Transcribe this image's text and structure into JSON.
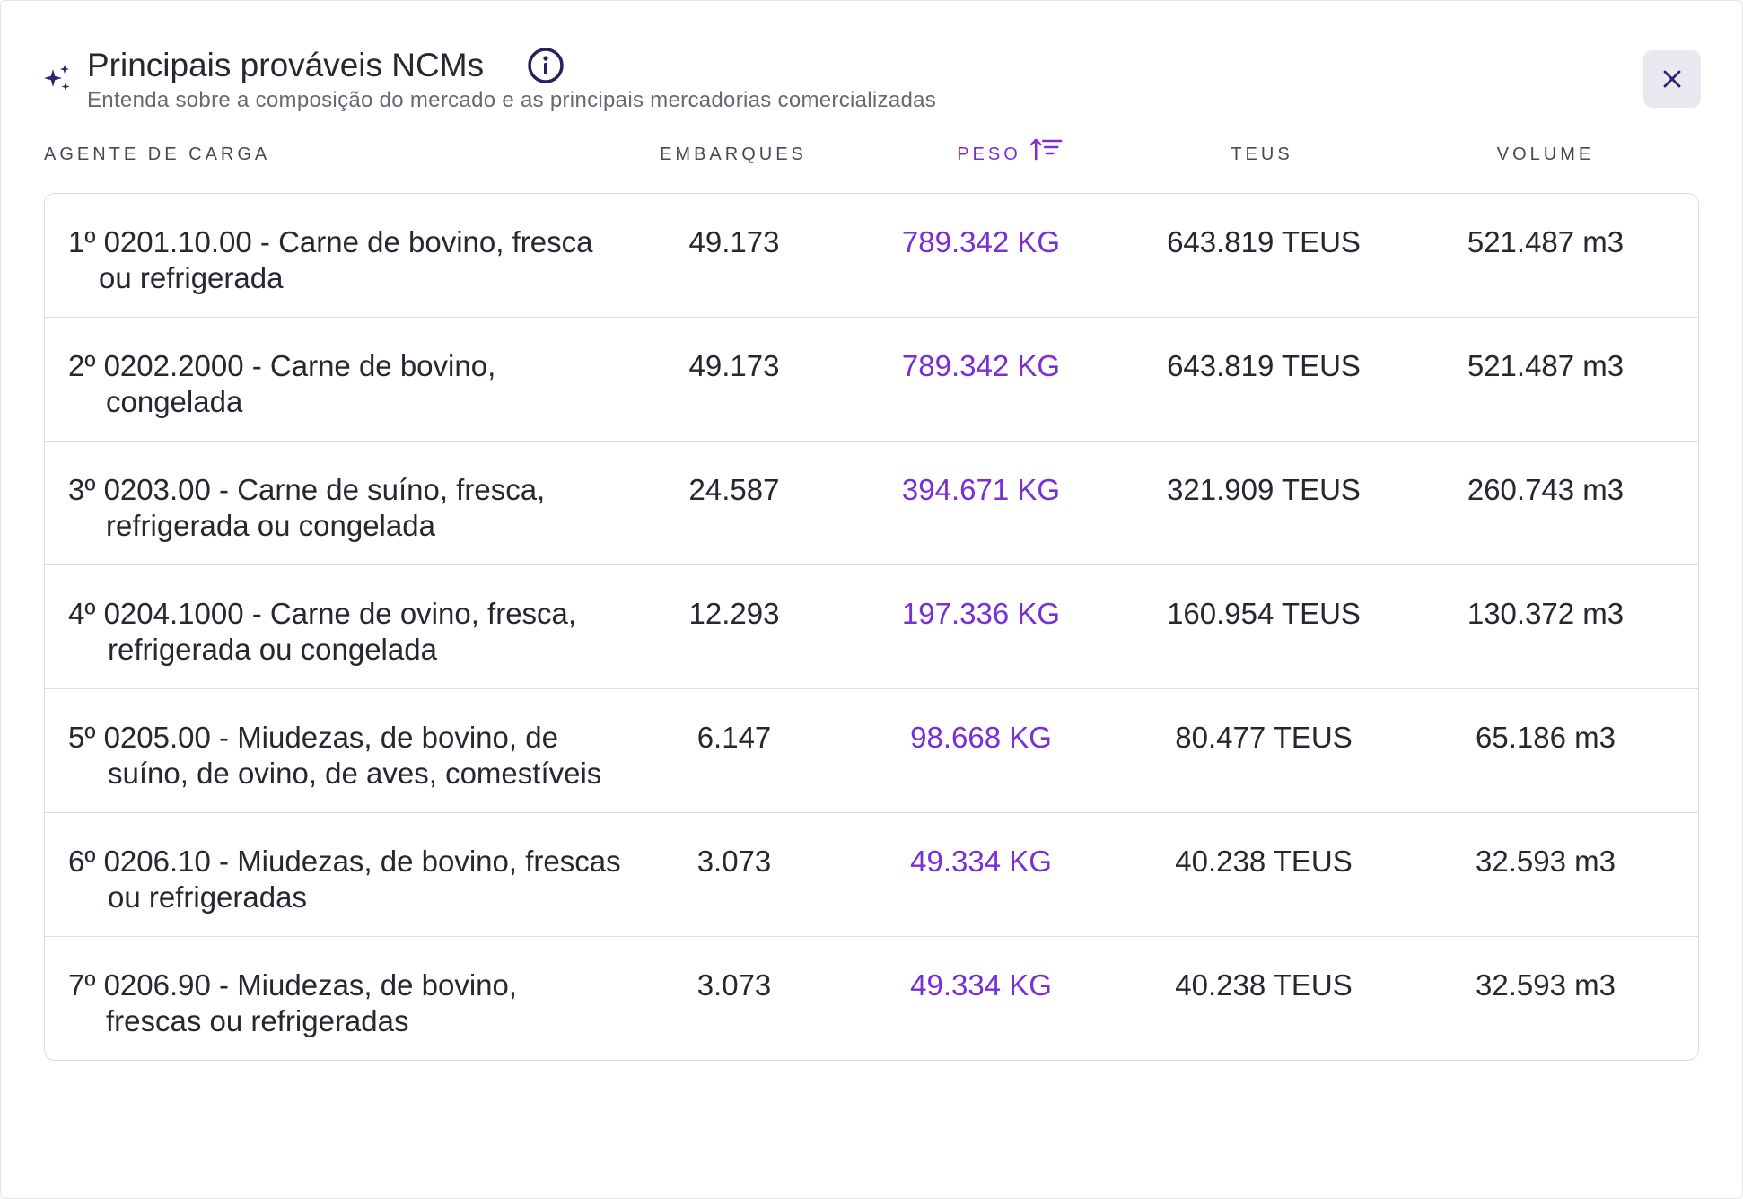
{
  "header": {
    "title": "Principais prováveis NCMs",
    "subtitle": "Entenda sobre a composição do mercado e as principais mercadorias comercializadas"
  },
  "icons": {
    "sparkle": "sparkle-icon",
    "info": "info-icon",
    "close": "close-icon",
    "sort": "sort-descending-icon"
  },
  "colors": {
    "accent": "#7a2fd4",
    "text": "#2a2532",
    "close_bg": "#e8e8ef"
  },
  "table": {
    "columns": {
      "agente": "AGENTE DE CARGA",
      "embarques": "EMBARQUES",
      "peso": "PESO",
      "teus": "TEUS",
      "volume": "VOLUME"
    },
    "sorted_by": "PESO",
    "rows": [
      {
        "rank": "1º",
        "line1": "0201.10.00 - Carne de bovino, fresca",
        "line2": "ou refrigerada",
        "embarques": "49.173",
        "peso": "789.342 KG",
        "teus": "643.819 TEUS",
        "volume": "521.487 m3"
      },
      {
        "rank": "2º",
        "line1": "0202.2000 - Carne de bovino,",
        "line2": "congelada",
        "embarques": "49.173",
        "peso": "789.342 KG",
        "teus": "643.819 TEUS",
        "volume": "521.487 m3"
      },
      {
        "rank": "3º",
        "line1": "0203.00 - Carne de suíno, fresca,",
        "line2": "refrigerada ou congelada",
        "embarques": "24.587",
        "peso": "394.671 KG",
        "teus": "321.909 TEUS",
        "volume": "260.743 m3"
      },
      {
        "rank": "4º",
        "line1": "0204.1000 - Carne de ovino, fresca,",
        "line2": "refrigerada ou congelada",
        "embarques": "12.293",
        "peso": "197.336 KG",
        "teus": "160.954 TEUS",
        "volume": "130.372 m3"
      },
      {
        "rank": "5º",
        "line1": "0205.00 - Miudezas, de bovino, de",
        "line2": "suíno, de ovino, de aves, comestíveis",
        "embarques": "6.147",
        "peso": "98.668 KG",
        "teus": "80.477 TEUS",
        "volume": "65.186 m3"
      },
      {
        "rank": "6º",
        "line1": "0206.10 - Miudezas, de bovino, frescas",
        "line2": "ou refrigeradas",
        "embarques": "3.073",
        "peso": "49.334 KG",
        "teus": "40.238 TEUS",
        "volume": "32.593 m3"
      },
      {
        "rank": "7º",
        "line1": "0206.90 - Miudezas, de bovino,",
        "line2": "frescas ou refrigeradas",
        "embarques": "3.073",
        "peso": "49.334 KG",
        "teus": "40.238 TEUS",
        "volume": "32.593 m3"
      }
    ]
  }
}
